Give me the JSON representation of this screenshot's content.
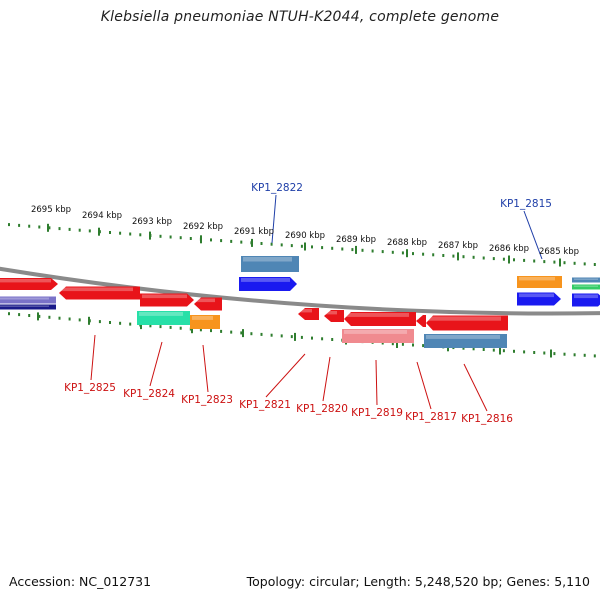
{
  "title": "Klebsiella pneumoniae NTUH-K2044, complete genome",
  "footer": {
    "accession": "Accession: NC_012731",
    "topology": "Topology: circular; Length: 5,248,520 bp; Genes: 5,110"
  },
  "scale_labels": [
    "2695 kbp",
    "2694 kbp",
    "2693 kbp",
    "2692 kbp",
    "2691 kbp",
    "2690 kbp",
    "2689 kbp",
    "2688 kbp",
    "2687 kbp",
    "2686 kbp",
    "2685 kbp"
  ],
  "gene_labels": {
    "top": [
      "KP1_2822",
      "KP1_2815"
    ],
    "bottom": [
      "KP1_2825",
      "KP1_2824",
      "KP1_2823",
      "KP1_2821",
      "KP1_2820",
      "KP1_2819",
      "KP1_2817",
      "KP1_2816"
    ]
  },
  "colors": {
    "backbone": "#8a8a8a",
    "tick": "#2e7d2e",
    "label_top": "#1f3fa8",
    "label_bottom": "#cc1111",
    "red": "#e8141a",
    "blue": "#1a1af0",
    "steel": "#4f86b5",
    "orange": "#f7941d",
    "green": "#33cc66",
    "teal": "#27e0a8",
    "navy": "#1a1a8a",
    "lavender": "#7a72c8",
    "pink": "#f08a8f"
  }
}
